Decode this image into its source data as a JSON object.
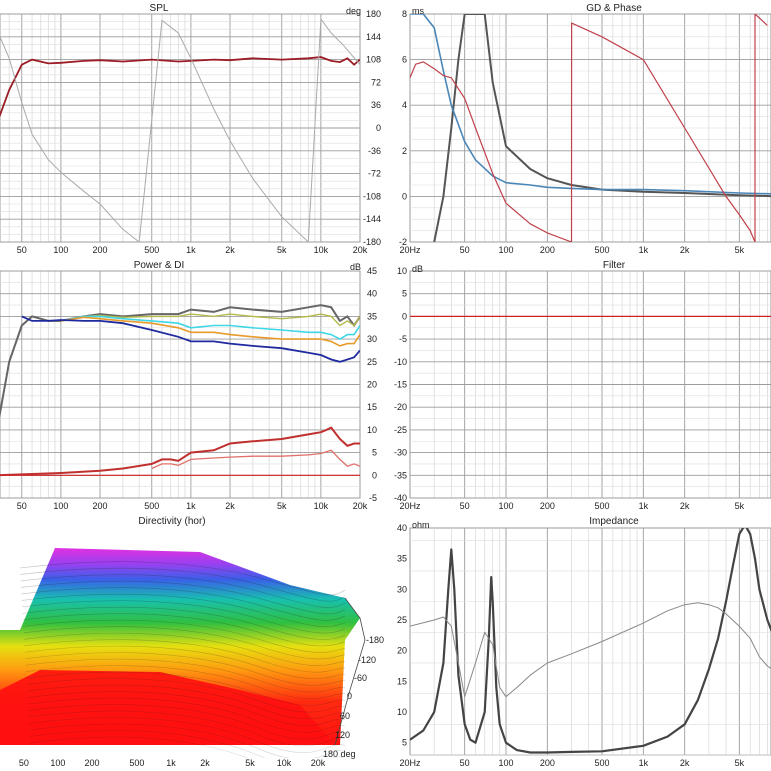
{
  "panels": {
    "spl": {
      "title": "SPL",
      "left_unit": "",
      "right_unit": "deg"
    },
    "gd": {
      "title": "GD & Phase",
      "left_unit": "ms"
    },
    "power": {
      "title": "Power & DI",
      "right_unit": "dB"
    },
    "filter": {
      "title": "Filter",
      "left_unit": "dB"
    },
    "directivity": {
      "title": "Directivity (hor)"
    },
    "impedance": {
      "title": "Impedance",
      "left_unit": "ohm"
    }
  },
  "chart_data": [
    {
      "type": "line",
      "title": "SPL",
      "x_scale": "log",
      "x_ticks": [
        "50",
        "100",
        "200",
        "500",
        "1k",
        "2k",
        "5k",
        "10k",
        "20k"
      ],
      "y2_label": "deg",
      "y2_ticks": [
        "180",
        "144",
        "108",
        "72",
        "36",
        "0",
        "-36",
        "-72",
        "-108",
        "-144",
        "-180"
      ],
      "y2lim": [
        -180,
        180
      ],
      "series": [
        {
          "color": "#9b1c24",
          "x": [
            30,
            40,
            50,
            60,
            80,
            100,
            150,
            200,
            300,
            500,
            800,
            1000,
            1500,
            2000,
            3000,
            5000,
            8000,
            10000,
            12000,
            14000,
            16000,
            18000,
            20000
          ],
          "y": [
            -10,
            60,
            100,
            108,
            102,
            103,
            106,
            107,
            105,
            108,
            105,
            106,
            108,
            107,
            110,
            108,
            110,
            112,
            106,
            104,
            110,
            100,
            108
          ]
        },
        {
          "color": "#aaaaaa",
          "x": [
            30,
            40,
            50,
            60,
            80,
            100,
            150,
            200,
            300,
            400,
            600,
            800,
            1000,
            1500,
            2000,
            3000,
            5000,
            8000,
            10000,
            12000,
            15000,
            20000
          ],
          "y": [
            170,
            110,
            40,
            -10,
            -50,
            -70,
            -100,
            -120,
            -160,
            -180,
            170,
            150,
            110,
            30,
            -20,
            -80,
            -140,
            -180,
            172,
            150,
            130,
            100
          ]
        }
      ]
    },
    {
      "type": "line",
      "title": "GD & Phase",
      "x_scale": "log",
      "x_ticks": [
        "20Hz",
        "50",
        "100",
        "200",
        "500",
        "1k",
        "2k",
        "5k"
      ],
      "ylabel": "ms",
      "y_ticks": [
        "8",
        "6",
        "4",
        "2",
        "0",
        "-2"
      ],
      "ylim": [
        -2,
        8
      ],
      "series": [
        {
          "color": "#555555",
          "x": [
            30,
            35,
            40,
            45,
            50,
            55,
            60,
            70,
            80,
            100,
            150,
            200,
            300,
            500,
            1000,
            2000,
            5000,
            10000
          ],
          "y": [
            -2,
            0,
            3,
            6,
            8,
            8,
            8,
            8,
            5,
            2.2,
            1.2,
            0.8,
            0.5,
            0.3,
            0.2,
            0.15,
            0.05,
            0
          ]
        },
        {
          "color": "#4a86b8",
          "x": [
            20,
            25,
            30,
            35,
            40,
            50,
            60,
            80,
            100,
            150,
            200,
            300,
            500,
            1000,
            2000,
            5000,
            10000
          ],
          "y": [
            8,
            8,
            7.4,
            5.5,
            4,
            2.4,
            1.6,
            0.9,
            0.6,
            0.5,
            0.4,
            0.35,
            0.3,
            0.3,
            0.25,
            0.15,
            0.1
          ]
        },
        {
          "color": "#c0404a",
          "x": [
            20,
            22,
            25,
            30,
            35,
            40,
            50,
            60,
            80,
            100,
            150,
            200,
            300,
            300.1,
            500,
            1000,
            2000,
            4000,
            5000,
            6000,
            6500,
            6500.1,
            8000
          ],
          "y": [
            5.2,
            5.8,
            5.9,
            5.6,
            5.3,
            5.2,
            4.3,
            3,
            1,
            -0.3,
            -1.2,
            -1.6,
            -2,
            7.6,
            7.0,
            6.0,
            3.0,
            0,
            -0.8,
            -1.5,
            -2,
            8,
            7.5
          ]
        }
      ]
    },
    {
      "type": "line",
      "title": "Power & DI",
      "x_scale": "log",
      "x_ticks": [
        "50",
        "100",
        "200",
        "500",
        "1k",
        "2k",
        "5k",
        "10k",
        "20k"
      ],
      "y2_label": "dB",
      "y2_ticks": [
        "45",
        "40",
        "35",
        "30",
        "25",
        "20",
        "15",
        "10",
        "5",
        "0",
        "-5"
      ],
      "y2lim": [
        -5,
        45
      ],
      "series": [
        {
          "color": "#666666",
          "x": [
            30,
            40,
            50,
            60,
            80,
            100,
            150,
            200,
            300,
            500,
            800,
            1000,
            1500,
            2000,
            3000,
            5000,
            8000,
            10000,
            12000,
            14000,
            16000,
            18000,
            20000
          ],
          "y": [
            5,
            25,
            33,
            35,
            34,
            34,
            35,
            35.5,
            35,
            35.5,
            35.5,
            36.5,
            36,
            37,
            36.5,
            36,
            37,
            37.5,
            37,
            34,
            35,
            33,
            35
          ]
        },
        {
          "color": "#b5b84a",
          "x": [
            100,
            150,
            200,
            300,
            500,
            800,
            1000,
            1500,
            2000,
            3000,
            5000,
            8000,
            10000,
            12000,
            14000,
            16000,
            18000,
            20000
          ],
          "y": [
            34,
            35,
            35.2,
            34.8,
            35,
            35,
            35.5,
            35,
            35.5,
            35,
            34.5,
            35,
            35.5,
            35,
            33,
            34,
            33,
            35
          ]
        },
        {
          "color": "#3fd6e6",
          "x": [
            100,
            150,
            200,
            300,
            500,
            800,
            1000,
            1500,
            2000,
            3000,
            5000,
            8000,
            10000,
            12000,
            14000,
            16000,
            18000,
            20000
          ],
          "y": [
            34,
            35,
            35,
            34.5,
            34,
            33.5,
            32.5,
            33,
            33,
            32.5,
            32,
            31.5,
            31.5,
            31,
            30,
            31,
            31,
            33
          ]
        },
        {
          "color": "#e89a2a",
          "x": [
            100,
            150,
            200,
            300,
            500,
            800,
            1000,
            1500,
            2000,
            3000,
            5000,
            8000,
            10000,
            12000,
            14000,
            16000,
            18000,
            20000
          ],
          "y": [
            34,
            34.8,
            34.5,
            34,
            33.5,
            32.5,
            31.5,
            31.5,
            31,
            30.5,
            30,
            30,
            30,
            29.5,
            28.5,
            29,
            29,
            31
          ]
        },
        {
          "color": "#1f2a9e",
          "x": [
            50,
            60,
            80,
            100,
            150,
            200,
            300,
            500,
            800,
            1000,
            1500,
            2000,
            3000,
            5000,
            8000,
            10000,
            12000,
            14000,
            16000,
            18000,
            20000
          ],
          "y": [
            35,
            34,
            34,
            34.2,
            34,
            34,
            33.5,
            32,
            30.5,
            29.5,
            29.5,
            29,
            28.5,
            28,
            27,
            26.5,
            25.5,
            25,
            25.5,
            26,
            27.5
          ]
        },
        {
          "color": "#c0302e",
          "x": [
            30,
            50,
            100,
            200,
            300,
            500,
            600,
            700,
            800,
            1000,
            1500,
            2000,
            3000,
            5000,
            8000,
            10000,
            11000,
            12000,
            14000,
            16000,
            18000,
            20000
          ],
          "y": [
            0,
            0.2,
            0.5,
            1,
            1.5,
            2.5,
            3.5,
            3.5,
            3.2,
            5,
            5.5,
            7,
            7.5,
            8,
            9,
            9.5,
            10,
            10.5,
            8,
            6.5,
            7,
            7
          ]
        },
        {
          "color": "#e0706a",
          "x": [
            500,
            600,
            700,
            800,
            1000,
            1500,
            2000,
            3000,
            5000,
            8000,
            10000,
            12000,
            14000,
            16000,
            18000,
            20000
          ],
          "y": [
            1.5,
            2.5,
            2.5,
            2.2,
            3.5,
            3.8,
            4,
            4.2,
            4.2,
            4.5,
            4.8,
            5.5,
            3.5,
            2,
            2.5,
            2
          ]
        },
        {
          "color": "#cc2222",
          "x": [
            20,
            20000
          ],
          "y": [
            0,
            0
          ]
        }
      ]
    },
    {
      "type": "line",
      "title": "Filter",
      "x_scale": "log",
      "x_ticks": [
        "20Hz",
        "50",
        "100",
        "200",
        "500",
        "1k",
        "2k",
        "5k"
      ],
      "ylabel": "dB",
      "y_ticks": [
        "10",
        "5",
        "0",
        "-5",
        "-10",
        "-15",
        "-20",
        "-25",
        "-30",
        "-35",
        "-40"
      ],
      "ylim": [
        -40,
        10
      ],
      "series": [
        {
          "color": "#cc2222",
          "x": [
            20,
            10000
          ],
          "y": [
            0,
            0
          ]
        }
      ]
    },
    {
      "type": "heatmap",
      "title": "Directivity (hor)",
      "x_scale": "log",
      "x_ticks": [
        "50",
        "100",
        "200",
        "500",
        "1k",
        "2k",
        "5k",
        "10k",
        "20k"
      ],
      "angle_ticks": [
        "-180",
        "-120",
        "-60",
        "0",
        "60",
        "120",
        "180 deg"
      ]
    },
    {
      "type": "line",
      "title": "Impedance",
      "x_scale": "log",
      "x_ticks": [
        "20Hz",
        "50",
        "100",
        "200",
        "500",
        "1k",
        "2k",
        "5k"
      ],
      "ylabel": "ohm",
      "y_ticks": [
        "40",
        "35",
        "30",
        "25",
        "20",
        "15",
        "10",
        "5"
      ],
      "ylim": [
        3,
        40
      ],
      "series": [
        {
          "color": "#444444",
          "x": [
            20,
            25,
            30,
            35,
            38,
            40,
            42,
            45,
            50,
            55,
            60,
            70,
            75,
            78,
            80,
            85,
            90,
            100,
            120,
            150,
            200,
            300,
            500,
            1000,
            1500,
            2000,
            2500,
            3000,
            3500,
            4000,
            4500,
            5000,
            5500,
            6000,
            6500,
            7000,
            8000,
            9000,
            10000
          ],
          "y": [
            5.5,
            7,
            10,
            18,
            30,
            36.5,
            30,
            16,
            8,
            5.5,
            5,
            10,
            22,
            32,
            28,
            14,
            8,
            5,
            3.8,
            3.4,
            3.4,
            3.5,
            3.6,
            4.5,
            6,
            8,
            12,
            17,
            22,
            28,
            34,
            39,
            40.5,
            39,
            35,
            30,
            25,
            22,
            21
          ]
        },
        {
          "color": "#888888",
          "x": [
            20,
            30,
            35,
            40,
            45,
            50,
            60,
            70,
            80,
            90,
            100,
            120,
            150,
            200,
            300,
            500,
            1000,
            1500,
            2000,
            2500,
            3000,
            3500,
            4000,
            5000,
            6000,
            7000,
            8000,
            10000
          ],
          "y": [
            24,
            25,
            25.5,
            24,
            18,
            12.5,
            18,
            23,
            21,
            14,
            12.5,
            14,
            16,
            18,
            19.5,
            21.5,
            24.5,
            26.5,
            27.5,
            27.8,
            27.5,
            27,
            26,
            24,
            22,
            19,
            17.5,
            16
          ]
        }
      ]
    }
  ]
}
